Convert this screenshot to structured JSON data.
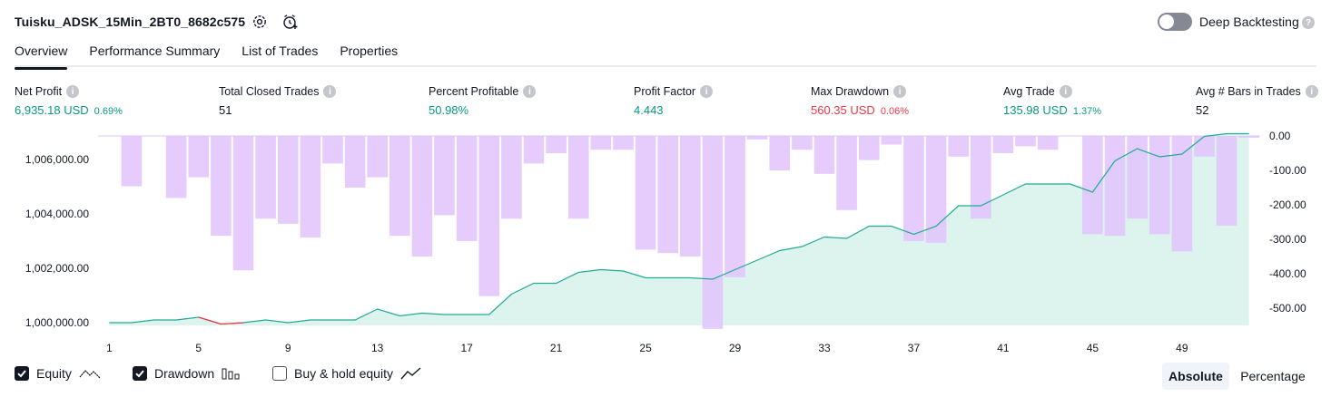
{
  "header": {
    "strategy_title": "Tuisku_ADSK_15Min_2BT0_8682c575",
    "deep_backtesting_label": "Deep Backtesting"
  },
  "tabs": [
    "Overview",
    "Performance Summary",
    "List of Trades",
    "Properties"
  ],
  "metrics": [
    {
      "label": "Net Profit",
      "value": "6,935.18 USD",
      "pct": "0.69%",
      "tone": "pos"
    },
    {
      "label": "Total Closed Trades",
      "value": "51",
      "pct": "",
      "tone": "neutral"
    },
    {
      "label": "Percent Profitable",
      "value": "50.98%",
      "pct": "",
      "tone": "pos"
    },
    {
      "label": "Profit Factor",
      "value": "4.443",
      "pct": "",
      "tone": "pos"
    },
    {
      "label": "Max Drawdown",
      "value": "560.35 USD",
      "pct": "0.06%",
      "tone": "neg"
    },
    {
      "label": "Avg Trade",
      "value": "135.98 USD",
      "pct": "1.37%",
      "tone": "pos"
    },
    {
      "label": "Avg # Bars in Trades",
      "value": "52",
      "pct": "",
      "tone": "neutral"
    }
  ],
  "legend": {
    "equity": "Equity",
    "drawdown": "Drawdown",
    "buy_hold": "Buy & hold equity"
  },
  "modes": {
    "absolute": "Absolute",
    "percentage": "Percentage"
  },
  "colors": {
    "positive": "#089981",
    "negative": "#f23645",
    "drawdown_bar": "#e1c3fc",
    "equity_line": "#22ab94",
    "equity_fill": "#d8f2ec"
  },
  "chart_data": {
    "type": "line",
    "x": [
      1,
      2,
      3,
      4,
      5,
      6,
      7,
      8,
      9,
      10,
      11,
      12,
      13,
      14,
      15,
      16,
      17,
      18,
      19,
      20,
      21,
      22,
      23,
      24,
      25,
      26,
      27,
      28,
      29,
      30,
      31,
      32,
      33,
      34,
      35,
      36,
      37,
      38,
      39,
      40,
      41,
      42,
      43,
      44,
      45,
      46,
      47,
      48,
      49,
      50,
      51,
      52
    ],
    "x_ticks": [
      1,
      5,
      9,
      13,
      17,
      21,
      25,
      29,
      33,
      37,
      41,
      45,
      49
    ],
    "series": [
      {
        "kind": "area-line",
        "axis": "left",
        "values": [
          1000000,
          1000000,
          1000100,
          1000100,
          1000200,
          999950,
          1000000,
          1000100,
          1000000,
          1000100,
          1000100,
          1000100,
          1000500,
          1000250,
          1000350,
          1000300,
          1000300,
          1000300,
          1001050,
          1001450,
          1001450,
          1001850,
          1001950,
          1001900,
          1001650,
          1001650,
          1001650,
          1001600,
          1001950,
          1002300,
          1002650,
          1002800,
          1003150,
          1003100,
          1003550,
          1003550,
          1003250,
          1003550,
          1004300,
          1004300,
          1004700,
          1005100,
          1005100,
          1005100,
          1004800,
          1005950,
          1006400,
          1006100,
          1006200,
          1006850,
          1006950,
          1006950
        ]
      },
      {
        "kind": "bar",
        "axis": "right",
        "values": [
          0,
          -146,
          0,
          -180,
          -120,
          -290,
          -390,
          -240,
          -255,
          -295,
          -80,
          -150,
          -120,
          -290,
          -350,
          -230,
          -305,
          -465,
          -240,
          -80,
          -50,
          -240,
          -40,
          -40,
          -330,
          -340,
          -350,
          -560,
          -410,
          -10,
          -100,
          -40,
          -110,
          -215,
          -70,
          -25,
          -305,
          -310,
          -60,
          -240,
          -50,
          -30,
          -40,
          0,
          -285,
          -290,
          -240,
          -285,
          -335,
          -60,
          -260,
          -5
        ]
      }
    ],
    "y_left": {
      "ticks": [
        "1,000,000.00",
        "1,002,000.00",
        "1,004,000.00",
        "1,006,000.00"
      ],
      "range": [
        1000000,
        1007000
      ]
    },
    "y_right": {
      "ticks": [
        "0.00",
        "-100.00",
        "-200.00",
        "-300.00",
        "-400.00",
        "-500.00"
      ],
      "range": [
        -550,
        0
      ]
    }
  }
}
